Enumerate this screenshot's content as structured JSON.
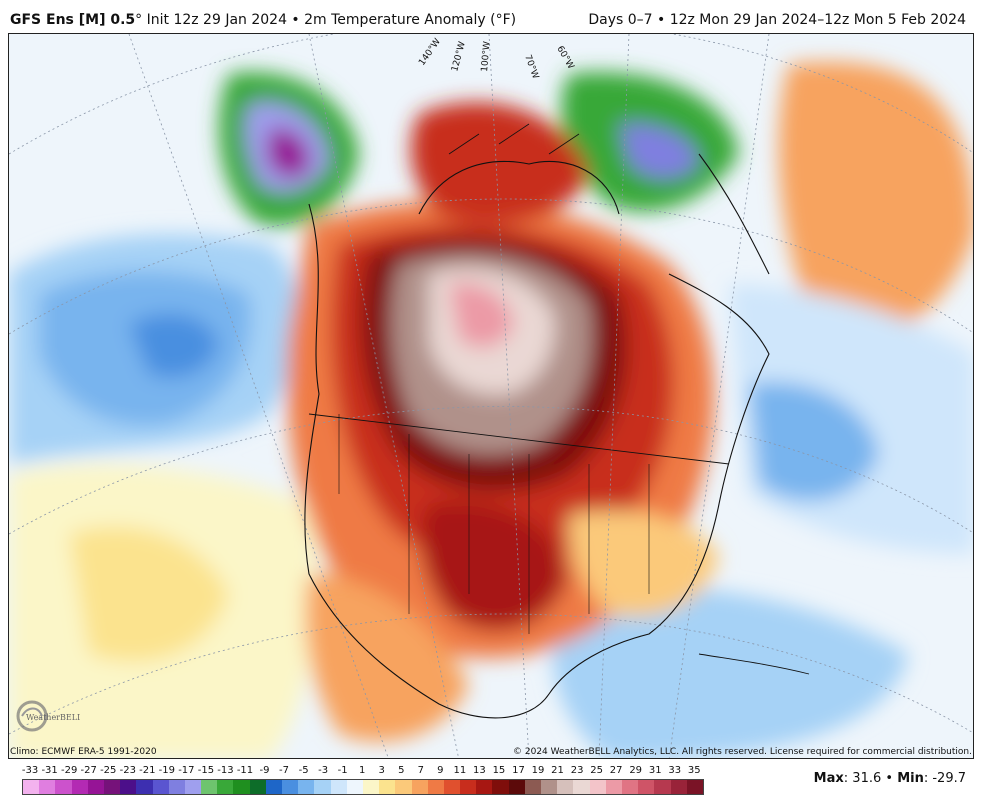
{
  "header": {
    "model": "GFS Ens [M] 0.5",
    "degree_mark": "°",
    "init": " Init 12z 29 Jan 2024 • 2m Temperature Anomaly (°F)",
    "range": "Days 0–7 • 12z Mon 29 Jan 2024–12z Mon 5 Feb 2024"
  },
  "map": {
    "longitude_labels": [
      "140°W",
      "120°W",
      "100°W",
      "70°W",
      "60°W"
    ],
    "logo_text": "WeatherBELL"
  },
  "footer": {
    "climo": "Climo: ECMWF ERA-5 1991-2020",
    "copyright": "© 2024 WeatherBELL Analytics, LLC. All rights reserved. License required for commercial distribution."
  },
  "legend": {
    "ticks": [
      "-33",
      "-31",
      "-29",
      "-27",
      "-25",
      "-23",
      "-21",
      "-19",
      "-17",
      "-15",
      "-13",
      "-11",
      "-9",
      "-7",
      "-5",
      "-3",
      "-1",
      "1",
      "3",
      "5",
      "7",
      "9",
      "11",
      "13",
      "15",
      "17",
      "19",
      "21",
      "23",
      "25",
      "27",
      "29",
      "31",
      "33",
      "35"
    ],
    "colors": [
      "#f3b2ee",
      "#e07ee0",
      "#cc52cc",
      "#b32ab3",
      "#961496",
      "#76127a",
      "#4c0f8a",
      "#3d2fb0",
      "#5a55d0",
      "#7f7fe0",
      "#9f9fee",
      "#6ec46e",
      "#39a839",
      "#1f8f1f",
      "#0d6d29",
      "#1e66c8",
      "#4a8fe0",
      "#78b4ee",
      "#a6d2f6",
      "#cfe6fb",
      "#eef6fd",
      "#fbf6c8",
      "#fbe38e",
      "#fbc97a",
      "#f7a35f",
      "#ef7a45",
      "#e0502e",
      "#c82d1d",
      "#a71712",
      "#7f0e0b",
      "#5c0a0a",
      "#8c5a52",
      "#b0918a",
      "#d6c0bb",
      "#ead8d4",
      "#f3c4c9",
      "#ec9aa6",
      "#e07484",
      "#cf5467",
      "#b6394f",
      "#992339",
      "#7a1326"
    ]
  },
  "stats": {
    "max_label": "Max",
    "max_value": ": 31.6",
    "separator": " • ",
    "min_label": "Min",
    "min_value": ": -29.7"
  }
}
